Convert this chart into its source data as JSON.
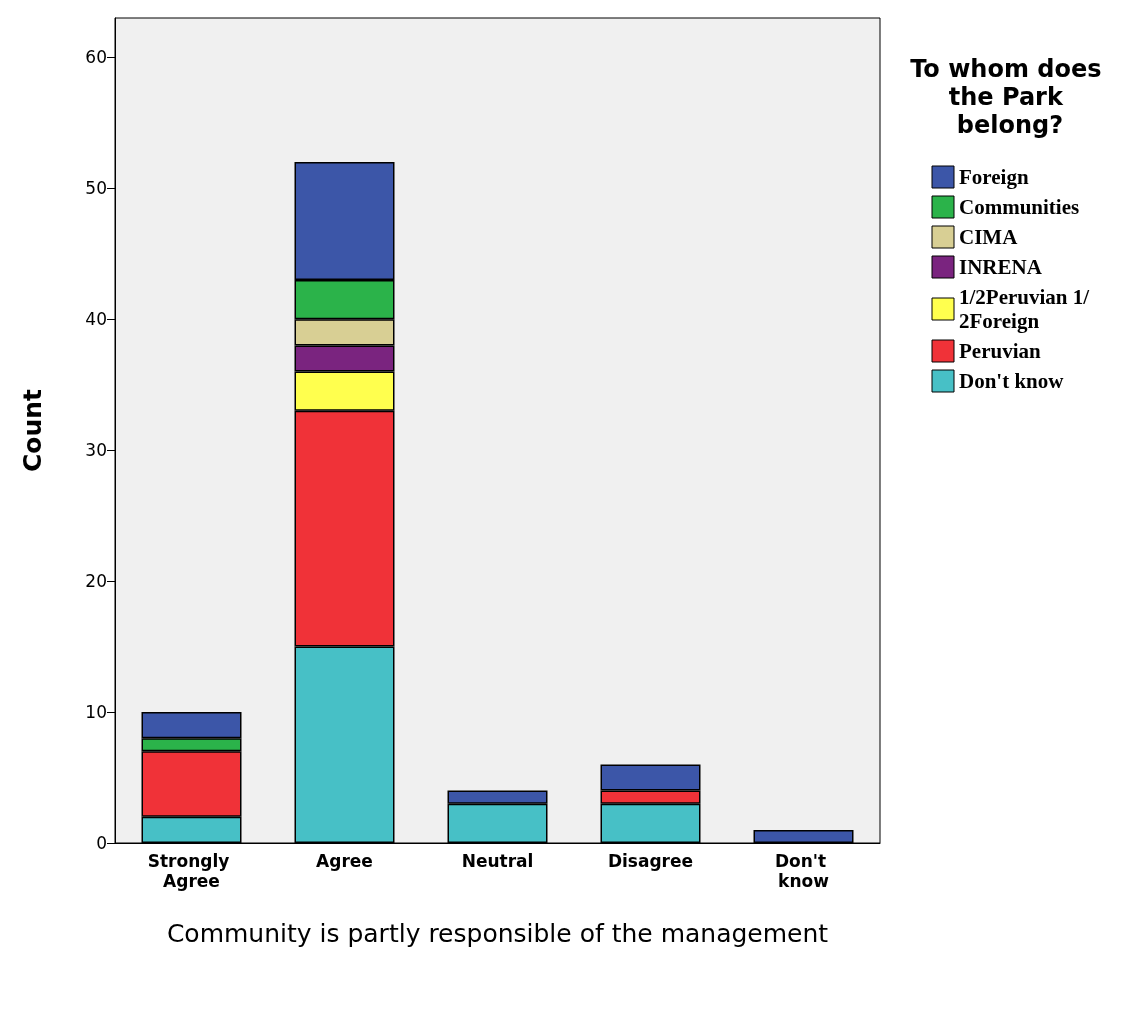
{
  "chart_data": {
    "type": "bar",
    "stacked": true,
    "xlabel": "Community is partly responsible of the management",
    "ylabel": "Count",
    "legend_title": "To whom does the Park belong?",
    "categories": [
      "Strongly Agree",
      "Agree",
      "Neutral",
      "Disagree",
      "Don't know"
    ],
    "series": [
      {
        "name": "Don't know",
        "color": "#47c0c6",
        "values": [
          2,
          15,
          3,
          3,
          null
        ]
      },
      {
        "name": "Peruvian",
        "color": "#f03238",
        "values": [
          5,
          18,
          null,
          1,
          null
        ]
      },
      {
        "name": "1/2Peruvian 1/2Foreign",
        "color": "#ffff4e",
        "values": [
          null,
          3,
          null,
          null,
          null
        ]
      },
      {
        "name": "INRENA",
        "color": "#7a247f",
        "values": [
          null,
          2,
          null,
          null,
          null
        ]
      },
      {
        "name": "CIMA",
        "color": "#d8cf94",
        "values": [
          null,
          2,
          null,
          null,
          null
        ]
      },
      {
        "name": "Communities",
        "color": "#2bb34a",
        "values": [
          1,
          3,
          null,
          null,
          null
        ]
      },
      {
        "name": "Foreign",
        "color": "#3c56a8",
        "values": [
          2,
          9,
          1,
          2,
          1
        ]
      }
    ],
    "ylim": [
      0,
      63
    ],
    "yticks": [
      0,
      10,
      20,
      30,
      40,
      50,
      60
    ],
    "grid": false,
    "legend": "right"
  }
}
